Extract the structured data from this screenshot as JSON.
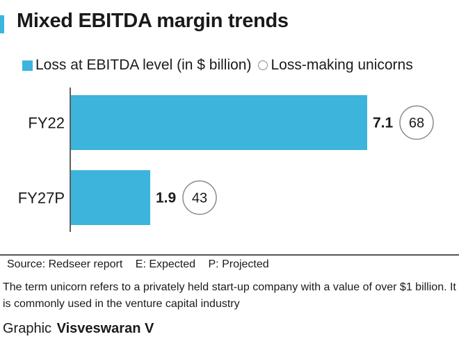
{
  "chart_data": {
    "type": "bar",
    "orientation": "horizontal",
    "title": "Mixed EBITDA margin trends",
    "categories": [
      "FY22",
      "FY27P"
    ],
    "series": [
      {
        "name": "Loss at EBITDA level (in $ billion)",
        "values": [
          7.1,
          1.9
        ],
        "color": "#3cb4dc"
      },
      {
        "name": "Loss-making unicorns",
        "values": [
          68,
          43
        ],
        "marker": "circle"
      }
    ],
    "grid": false,
    "legend_position": "top-left"
  },
  "footer": {
    "source": "Source: Redseer report",
    "expected": "E: Expected",
    "projected": "P: Projected",
    "note": "The term unicorn refers to a privately held start-up company with a value of over $1 billion. It is commonly used in the venture capital industry",
    "credit_prefix": "Graphic",
    "credit_name": "Visveswaran V"
  }
}
